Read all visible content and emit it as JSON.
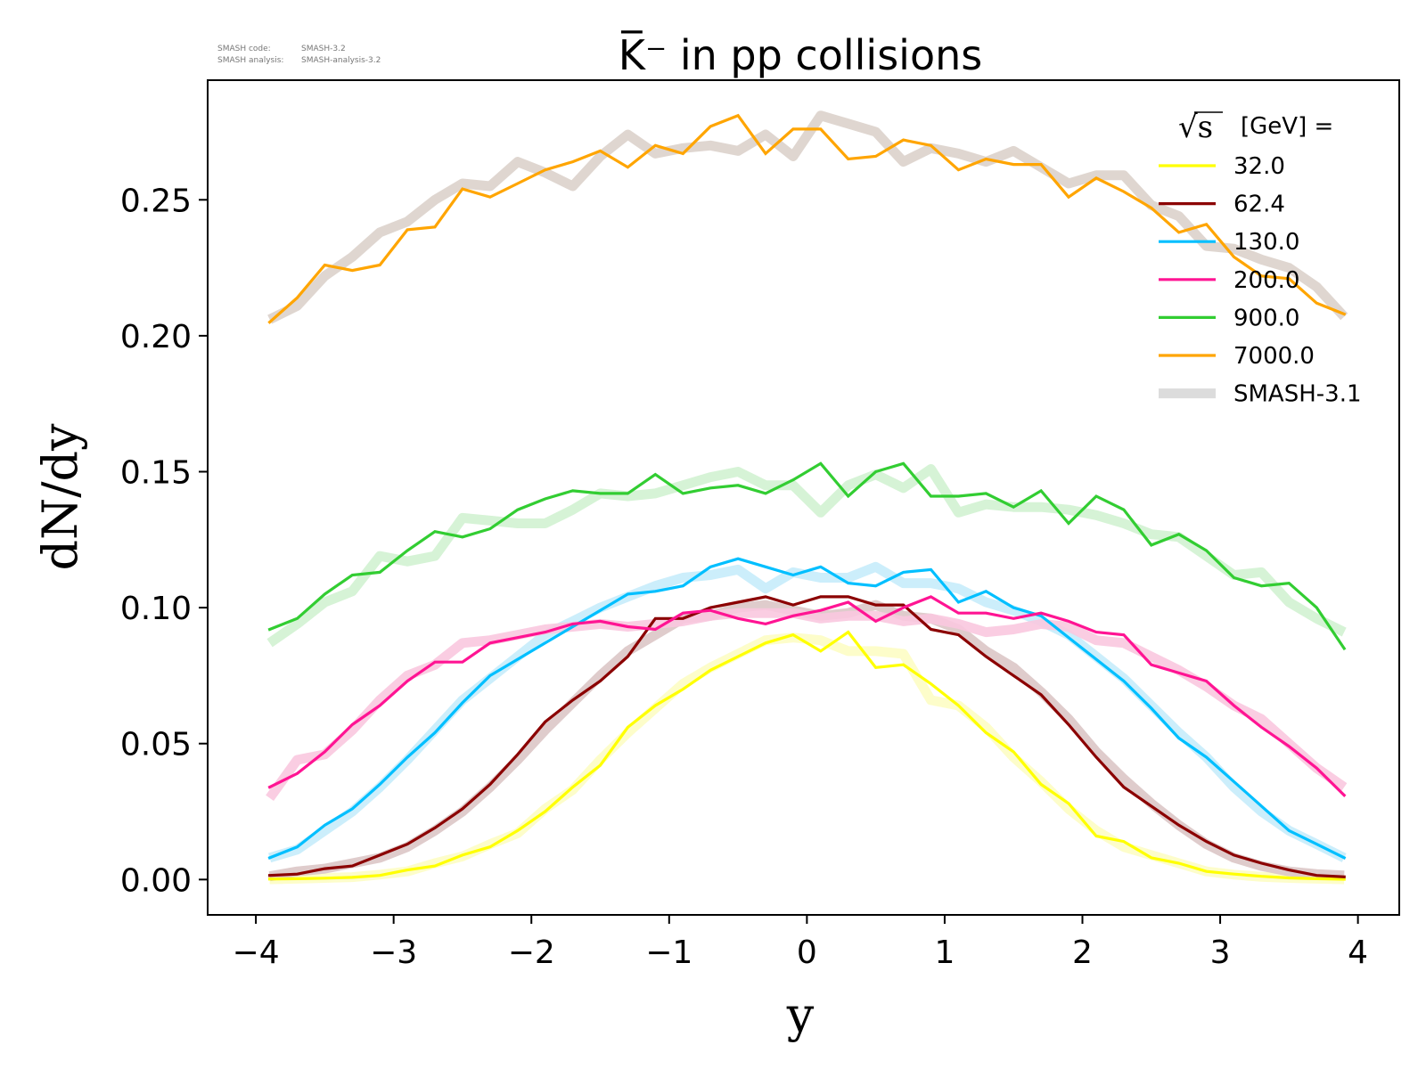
{
  "watermark": {
    "code_label": "SMASH code:",
    "code_value": "SMASH-3.2",
    "analysis_label": "SMASH analysis:",
    "analysis_value": "SMASH-analysis-3.2"
  },
  "chart_data": {
    "type": "line",
    "title": "K̅⁻ in pp collisions",
    "xlabel": "y",
    "ylabel": "dN/dy",
    "xlim": [
      -4.35,
      4.3
    ],
    "ylim": [
      -0.013,
      0.294
    ],
    "xticks": [
      -4,
      -3,
      -2,
      -1,
      0,
      1,
      2,
      3,
      4
    ],
    "xtick_labels": [
      "−4",
      "−3",
      "−2",
      "−1",
      "0",
      "1",
      "2",
      "3",
      "4"
    ],
    "yticks": [
      0.0,
      0.05,
      0.1,
      0.15,
      0.2,
      0.25
    ],
    "ytick_labels": [
      "0.00",
      "0.05",
      "0.10",
      "0.15",
      "0.20",
      "0.25"
    ],
    "grid": false,
    "legend": {
      "position": "top-right",
      "title_radical": "√s",
      "title_rest": "[GeV] =",
      "reference_label": "SMASH-3.1"
    },
    "x": [
      -3.9,
      -3.7,
      -3.5,
      -3.3,
      -3.1,
      -2.9,
      -2.7,
      -2.5,
      -2.3,
      -2.1,
      -1.9,
      -1.7,
      -1.5,
      -1.3,
      -1.1,
      -0.9,
      -0.7,
      -0.5,
      -0.3,
      -0.1,
      0.1,
      0.3,
      0.5,
      0.7,
      0.9,
      1.1,
      1.3,
      1.5,
      1.7,
      1.9,
      2.1,
      2.3,
      2.5,
      2.7,
      2.9,
      3.1,
      3.3,
      3.5,
      3.7,
      3.9
    ],
    "series": [
      {
        "name": "32.0",
        "color": "#ffff00",
        "ref_color": "#fdfdc4",
        "values": [
          0.0002,
          0.0003,
          0.0005,
          0.0008,
          0.0015,
          0.0035,
          0.005,
          0.009,
          0.012,
          0.018,
          0.025,
          0.034,
          0.042,
          0.056,
          0.064,
          0.07,
          0.077,
          0.082,
          0.087,
          0.09,
          0.084,
          0.091,
          0.078,
          0.079,
          0.072,
          0.064,
          0.054,
          0.047,
          0.035,
          0.028,
          0.016,
          0.014,
          0.008,
          0.006,
          0.003,
          0.002,
          0.0012,
          0.0006,
          0.0003,
          0.0001
        ],
        "reference": [
          0.0001,
          0.0003,
          0.0006,
          0.0009,
          0.0018,
          0.003,
          0.006,
          0.0085,
          0.013,
          0.017,
          0.026,
          0.033,
          0.044,
          0.054,
          0.063,
          0.072,
          0.078,
          0.083,
          0.088,
          0.089,
          0.088,
          0.084,
          0.084,
          0.083,
          0.066,
          0.064,
          0.056,
          0.045,
          0.036,
          0.026,
          0.018,
          0.012,
          0.009,
          0.006,
          0.003,
          0.0018,
          0.001,
          0.0006,
          0.0003,
          0.0001
        ]
      },
      {
        "name": "62.4",
        "color": "#8b0000",
        "ref_color": "#dcc7c7",
        "values": [
          0.0015,
          0.002,
          0.004,
          0.005,
          0.009,
          0.013,
          0.019,
          0.026,
          0.035,
          0.046,
          0.058,
          0.066,
          0.073,
          0.082,
          0.096,
          0.096,
          0.1,
          0.102,
          0.104,
          0.101,
          0.104,
          0.104,
          0.101,
          0.101,
          0.092,
          0.09,
          0.082,
          0.075,
          0.068,
          0.057,
          0.045,
          0.034,
          0.027,
          0.02,
          0.014,
          0.009,
          0.006,
          0.0035,
          0.0015,
          0.001
        ],
        "reference": [
          0.0012,
          0.003,
          0.004,
          0.006,
          0.008,
          0.012,
          0.018,
          0.025,
          0.034,
          0.044,
          0.055,
          0.065,
          0.075,
          0.084,
          0.09,
          0.096,
          0.097,
          0.1,
          0.101,
          0.099,
          0.097,
          0.098,
          0.101,
          0.097,
          0.096,
          0.092,
          0.084,
          0.078,
          0.069,
          0.059,
          0.047,
          0.037,
          0.028,
          0.02,
          0.013,
          0.008,
          0.005,
          0.003,
          0.002,
          0.0015
        ]
      },
      {
        "name": "130.0",
        "color": "#00bfff",
        "ref_color": "#c7ecfb",
        "values": [
          0.008,
          0.012,
          0.02,
          0.026,
          0.035,
          0.045,
          0.054,
          0.065,
          0.075,
          0.081,
          0.087,
          0.093,
          0.099,
          0.105,
          0.106,
          0.108,
          0.115,
          0.118,
          0.115,
          0.112,
          0.115,
          0.109,
          0.108,
          0.113,
          0.114,
          0.102,
          0.106,
          0.1,
          0.097,
          0.089,
          0.081,
          0.073,
          0.063,
          0.052,
          0.045,
          0.036,
          0.027,
          0.018,
          0.013,
          0.008
        ],
        "reference": [
          0.008,
          0.011,
          0.018,
          0.025,
          0.034,
          0.044,
          0.055,
          0.066,
          0.074,
          0.082,
          0.09,
          0.095,
          0.1,
          0.104,
          0.108,
          0.111,
          0.112,
          0.114,
          0.107,
          0.113,
          0.111,
          0.111,
          0.115,
          0.109,
          0.109,
          0.107,
          0.102,
          0.099,
          0.095,
          0.09,
          0.082,
          0.074,
          0.064,
          0.054,
          0.045,
          0.034,
          0.025,
          0.018,
          0.013,
          0.008
        ]
      },
      {
        "name": "200.0",
        "color": "#ff1493",
        "ref_color": "#f9c8df",
        "values": [
          0.034,
          0.039,
          0.047,
          0.057,
          0.064,
          0.073,
          0.08,
          0.08,
          0.087,
          0.089,
          0.091,
          0.094,
          0.095,
          0.093,
          0.092,
          0.098,
          0.099,
          0.096,
          0.094,
          0.097,
          0.099,
          0.102,
          0.095,
          0.1,
          0.104,
          0.098,
          0.098,
          0.096,
          0.098,
          0.095,
          0.091,
          0.09,
          0.079,
          0.076,
          0.073,
          0.064,
          0.056,
          0.049,
          0.041,
          0.031
        ],
        "reference": [
          0.03,
          0.044,
          0.046,
          0.055,
          0.066,
          0.075,
          0.079,
          0.087,
          0.088,
          0.09,
          0.092,
          0.093,
          0.094,
          0.093,
          0.094,
          0.095,
          0.097,
          0.098,
          0.098,
          0.098,
          0.096,
          0.097,
          0.097,
          0.095,
          0.096,
          0.094,
          0.091,
          0.092,
          0.094,
          0.093,
          0.088,
          0.087,
          0.082,
          0.077,
          0.071,
          0.064,
          0.059,
          0.05,
          0.041,
          0.034
        ]
      },
      {
        "name": "900.0",
        "color": "#32cd32",
        "ref_color": "#d1f2d1",
        "values": [
          0.092,
          0.096,
          0.105,
          0.112,
          0.113,
          0.121,
          0.128,
          0.126,
          0.129,
          0.136,
          0.14,
          0.143,
          0.142,
          0.142,
          0.149,
          0.142,
          0.144,
          0.145,
          0.142,
          0.147,
          0.153,
          0.141,
          0.15,
          0.153,
          0.141,
          0.141,
          0.142,
          0.137,
          0.143,
          0.131,
          0.141,
          0.136,
          0.123,
          0.127,
          0.121,
          0.111,
          0.108,
          0.109,
          0.1,
          0.085
        ],
        "reference": [
          0.087,
          0.094,
          0.102,
          0.106,
          0.119,
          0.117,
          0.119,
          0.133,
          0.132,
          0.131,
          0.131,
          0.136,
          0.142,
          0.141,
          0.142,
          0.145,
          0.148,
          0.15,
          0.145,
          0.145,
          0.135,
          0.145,
          0.149,
          0.144,
          0.151,
          0.135,
          0.138,
          0.137,
          0.137,
          0.136,
          0.134,
          0.131,
          0.127,
          0.126,
          0.119,
          0.112,
          0.113,
          0.102,
          0.096,
          0.091
        ]
      },
      {
        "name": "7000.0",
        "color": "#ffa500",
        "ref_color": "#dcd2cb",
        "values": [
          0.205,
          0.214,
          0.226,
          0.224,
          0.226,
          0.239,
          0.24,
          0.254,
          0.251,
          0.256,
          0.261,
          0.264,
          0.268,
          0.262,
          0.27,
          0.267,
          0.277,
          0.281,
          0.267,
          0.276,
          0.276,
          0.265,
          0.266,
          0.272,
          0.27,
          0.261,
          0.265,
          0.263,
          0.263,
          0.251,
          0.258,
          0.253,
          0.247,
          0.238,
          0.241,
          0.229,
          0.222,
          0.221,
          0.212,
          0.208
        ],
        "reference": [
          0.206,
          0.211,
          0.222,
          0.229,
          0.238,
          0.242,
          0.25,
          0.256,
          0.255,
          0.264,
          0.26,
          0.255,
          0.266,
          0.274,
          0.267,
          0.269,
          0.27,
          0.268,
          0.274,
          0.266,
          0.281,
          0.278,
          0.275,
          0.264,
          0.269,
          0.267,
          0.264,
          0.268,
          0.262,
          0.256,
          0.259,
          0.259,
          0.248,
          0.244,
          0.233,
          0.232,
          0.228,
          0.225,
          0.218,
          0.207
        ]
      }
    ]
  }
}
